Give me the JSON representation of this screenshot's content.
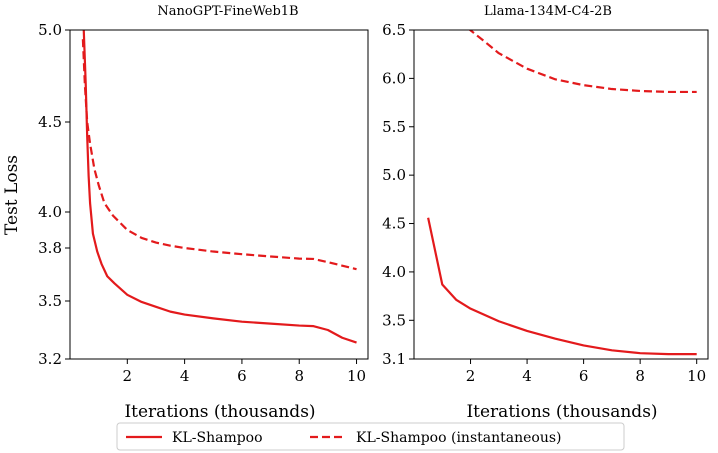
{
  "chart_data": [
    {
      "type": "line",
      "title": "NanoGPT-FineWeb1B",
      "xlabel": "Iterations (thousands)",
      "ylabel": "Test Loss",
      "xlim": [
        0,
        10.4
      ],
      "ylim": [
        3.2,
        5.0
      ],
      "yscale": "nonlinear",
      "xticks": [
        2,
        4,
        6,
        8,
        10
      ],
      "yticks": [
        "5.0",
        "4.5",
        "4.0",
        "3.8",
        "3.5",
        "3.2"
      ],
      "series": [
        {
          "name": "KL-Shampoo",
          "style": "solid",
          "color": "#e31a1c",
          "x": [
            0.48,
            0.55,
            0.6,
            0.65,
            0.7,
            0.8,
            0.95,
            1.1,
            1.3,
            1.55,
            2.0,
            2.5,
            3.0,
            3.5,
            4.0,
            5.0,
            6.0,
            7.0,
            8.0,
            8.5,
            9.0,
            9.5,
            10.0
          ],
          "y": [
            5.0,
            4.7,
            4.42,
            4.2,
            4.05,
            3.88,
            3.78,
            3.71,
            3.64,
            3.6,
            3.535,
            3.495,
            3.47,
            3.445,
            3.43,
            3.41,
            3.393,
            3.383,
            3.373,
            3.37,
            3.35,
            3.31,
            3.285
          ]
        },
        {
          "name": "KL-Shampoo (instantaneous)",
          "style": "dashed",
          "color": "#e31a1c",
          "x": [
            0.45,
            0.52,
            0.6,
            0.7,
            0.85,
            1.0,
            1.2,
            1.5,
            2.0,
            2.5,
            3.0,
            3.5,
            4.0,
            5.0,
            6.0,
            7.0,
            8.0,
            8.5,
            9.0,
            9.5,
            10.0
          ],
          "y": [
            4.95,
            4.7,
            4.5,
            4.38,
            4.24,
            4.15,
            4.05,
            3.98,
            3.9,
            3.856,
            3.83,
            3.813,
            3.8,
            3.78,
            3.765,
            3.752,
            3.74,
            3.738,
            3.72,
            3.7,
            3.68
          ]
        }
      ]
    },
    {
      "type": "line",
      "title": "Llama-134M-C4-2B",
      "xlabel": "Iterations (thousands)",
      "ylabel": "",
      "xlim": [
        0,
        10.4
      ],
      "ylim": [
        3.1,
        6.5
      ],
      "xticks": [
        2,
        4,
        6,
        8,
        10
      ],
      "yticks": [
        "6.5",
        "6.0",
        "5.5",
        "5.0",
        "4.5",
        "4.0",
        "3.5",
        "3.1"
      ],
      "series": [
        {
          "name": "KL-Shampoo",
          "style": "solid",
          "color": "#e31a1c",
          "x": [
            0.5,
            1.0,
            1.5,
            2.0,
            3.0,
            4.0,
            5.0,
            6.0,
            7.0,
            8.0,
            9.0,
            10.0
          ],
          "y": [
            4.56,
            3.87,
            3.71,
            3.62,
            3.49,
            3.39,
            3.31,
            3.24,
            3.19,
            3.16,
            3.15,
            3.15
          ]
        },
        {
          "name": "KL-Shampoo (instantaneous)",
          "style": "dashed",
          "color": "#e31a1c",
          "x": [
            1.9,
            2.5,
            3.0,
            4.0,
            5.0,
            6.0,
            7.0,
            8.0,
            9.0,
            10.0
          ],
          "y": [
            6.52,
            6.38,
            6.26,
            6.1,
            5.99,
            5.93,
            5.89,
            5.87,
            5.86,
            5.86
          ]
        }
      ]
    }
  ],
  "legend": {
    "entries": [
      "KL-Shampoo",
      "KL-Shampoo (instantaneous)"
    ],
    "placement": "bottom-center"
  }
}
